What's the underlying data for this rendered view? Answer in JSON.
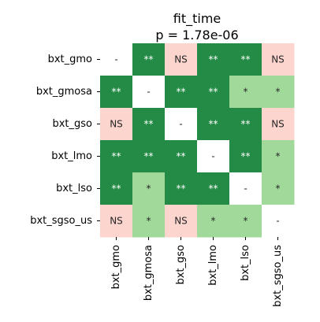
{
  "chart_data": {
    "type": "heatmap",
    "title": "fit_time",
    "subtitle": "p = 1.78e-06",
    "row_labels": [
      "bxt_gmo",
      "bxt_gmosa",
      "bxt_gso",
      "bxt_lmo",
      "bxt_lso",
      "bxt_sgso_us"
    ],
    "col_labels": [
      "bxt_gmo",
      "bxt_gmosa",
      "bxt_gso",
      "bxt_lmo",
      "bxt_lso",
      "bxt_sgso_us"
    ],
    "cells": [
      [
        "-",
        "**",
        "NS",
        "**",
        "**",
        "NS"
      ],
      [
        "**",
        "-",
        "**",
        "**",
        "*",
        "*"
      ],
      [
        "NS",
        "**",
        "-",
        "**",
        "**",
        "NS"
      ],
      [
        "**",
        "**",
        "**",
        "-",
        "**",
        "*"
      ],
      [
        "**",
        "*",
        "**",
        "**",
        "-",
        "*"
      ],
      [
        "NS",
        "*",
        "NS",
        "*",
        "*",
        "-"
      ]
    ],
    "colors": {
      "**": "#238b45",
      "*": "#a1d99b",
      "NS": "#fcd5ce",
      "-": "#ffffff"
    },
    "text_colors": {
      "**": "#ffffff",
      "*": "#262626",
      "NS": "#262626",
      "-": "#262626"
    }
  }
}
